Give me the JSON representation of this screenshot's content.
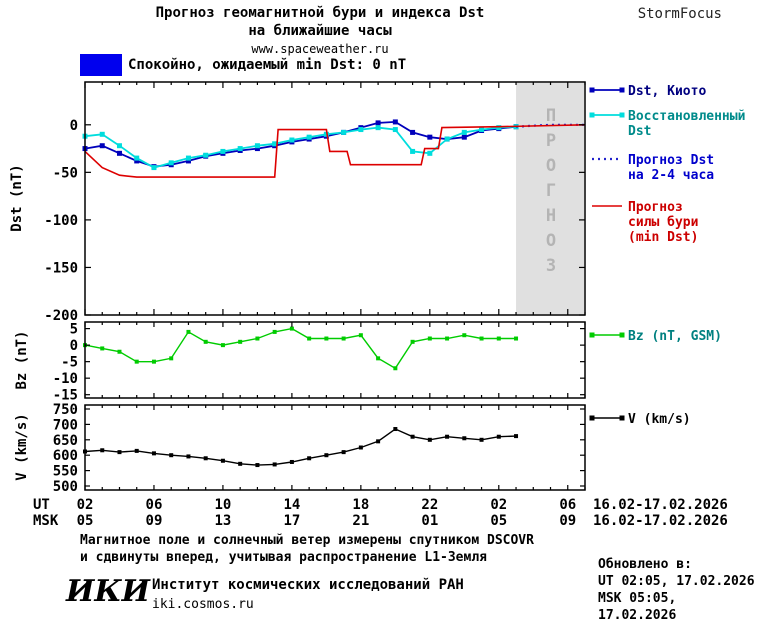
{
  "header": {
    "title_line1": "Прогноз геомагнитной бури и индекса Dst",
    "title_line2": "на ближайшие часы",
    "site": "www.spaceweather.ru",
    "brand": "StormFocus"
  },
  "status": {
    "label": "Спокойно, ожидаемый min Dst: 0 nT"
  },
  "style": {
    "band_color": "#e0e0e0",
    "band_text_color": "#b4b4b4",
    "status_box_color": "#0000ee",
    "axis_color": "#000000"
  },
  "chart_data": [
    {
      "type": "line",
      "id": "dst",
      "ylabel": "Dst (nT)",
      "xlim": [
        2,
        31
      ],
      "ylim": [
        -200,
        45
      ],
      "yticks": [
        0,
        -50,
        -100,
        -150,
        -200
      ],
      "xticks": [
        2,
        6,
        10,
        14,
        18,
        22,
        26,
        30
      ],
      "forecast_band": [
        27,
        31
      ],
      "forecast_band_label": "ПРОГНОЗ",
      "series": [
        {
          "id": "dst-kyoto",
          "color": "#0000bb",
          "marker": "square",
          "marker_size": 5,
          "width": 1.8,
          "x": [
            2,
            3,
            4,
            5,
            6,
            7,
            8,
            9,
            10,
            11,
            12,
            13,
            14,
            15,
            16,
            17,
            18,
            19,
            20,
            21,
            22,
            23,
            24,
            25,
            26,
            27
          ],
          "values": [
            -25,
            -22,
            -30,
            -38,
            -44,
            -42,
            -38,
            -33,
            -30,
            -27,
            -25,
            -22,
            -18,
            -15,
            -12,
            -8,
            -3,
            2,
            3,
            -8,
            -13,
            -15,
            -13,
            -6,
            -4,
            -2
          ],
          "legend": {
            "lines": [
              "Dst, Киото"
            ],
            "text_color": "#000080"
          }
        },
        {
          "id": "dst-restored",
          "color": "#00dddd",
          "marker": "square",
          "marker_size": 5,
          "width": 1.8,
          "x": [
            2,
            3,
            4,
            5,
            6,
            7,
            8,
            9,
            10,
            11,
            12,
            13,
            14,
            15,
            16,
            17,
            18,
            19,
            20,
            21,
            22,
            23,
            24,
            25,
            26,
            27
          ],
          "values": [
            -12,
            -10,
            -22,
            -35,
            -45,
            -40,
            -35,
            -32,
            -28,
            -25,
            -22,
            -20,
            -16,
            -13,
            -10,
            -8,
            -5,
            -3,
            -5,
            -28,
            -30,
            -15,
            -8,
            -5,
            -3,
            -2
          ],
          "legend": {
            "lines": [
              "Восстановленный",
              "Dst"
            ],
            "text_color": "#008b8b"
          }
        },
        {
          "id": "dst-forecast",
          "color": "#2222cc",
          "style": "dotted",
          "width": 2.2,
          "x": [
            27,
            28,
            29,
            30,
            31
          ],
          "values": [
            -2,
            -1,
            0,
            0,
            0
          ],
          "legend": {
            "lines": [
              "Прогноз Dst",
              "на 2-4 часа"
            ],
            "text_color": "#0000cc"
          }
        },
        {
          "id": "storm-forecast",
          "color": "#dd0000",
          "width": 1.6,
          "x": [
            2,
            3,
            4,
            5,
            13,
            13.2,
            16,
            16.2,
            17.2,
            17.4,
            21.5,
            21.7,
            22.5,
            22.7,
            26,
            31
          ],
          "values": [
            -28,
            -45,
            -53,
            -55,
            -55,
            -5,
            -5,
            -28,
            -28,
            -42,
            -42,
            -25,
            -25,
            -3,
            -2,
            0
          ],
          "legend": {
            "lines": [
              "Прогноз",
              "силы бури",
              "(min Dst)"
            ],
            "text_color": "#cc0000"
          }
        }
      ]
    },
    {
      "type": "line",
      "id": "bz",
      "ylabel": "Bz (nT)",
      "xlim": [
        2,
        31
      ],
      "ylim": [
        -16,
        7
      ],
      "yticks": [
        5,
        0,
        -5,
        -10,
        -15
      ],
      "xticks": [
        2,
        6,
        10,
        14,
        18,
        22,
        26,
        30
      ],
      "series": [
        {
          "id": "bz-gsm",
          "color": "#00cc00",
          "marker": "square",
          "marker_size": 4,
          "width": 1.4,
          "x": [
            2,
            3,
            4,
            5,
            6,
            7,
            8,
            9,
            10,
            11,
            12,
            13,
            14,
            15,
            16,
            17,
            18,
            19,
            20,
            21,
            22,
            23,
            24,
            25,
            26,
            27
          ],
          "values": [
            0,
            -1,
            -2,
            -5,
            -5,
            -4,
            4,
            1,
            0,
            1,
            2,
            4,
            5,
            2,
            2,
            2,
            3,
            -4,
            -7,
            1,
            2,
            2,
            3,
            2,
            2,
            2
          ],
          "legend": {
            "lines": [
              "Bz (nT, GSM)"
            ],
            "text_color": "#008080"
          }
        }
      ]
    },
    {
      "type": "line",
      "id": "v",
      "ylabel": "V (km/s)",
      "xlim": [
        2,
        31
      ],
      "ylim": [
        487,
        763
      ],
      "yticks": [
        750,
        700,
        650,
        600,
        550,
        500
      ],
      "xticks": [
        2,
        6,
        10,
        14,
        18,
        22,
        26,
        30
      ],
      "series": [
        {
          "id": "solar-wind-v",
          "color": "#000000",
          "marker": "square",
          "marker_size": 4,
          "width": 1.4,
          "x": [
            2,
            3,
            4,
            5,
            6,
            7,
            8,
            9,
            10,
            11,
            12,
            13,
            14,
            15,
            16,
            17,
            18,
            19,
            20,
            21,
            22,
            23,
            24,
            25,
            26,
            27
          ],
          "values": [
            612,
            616,
            610,
            614,
            606,
            600,
            596,
            590,
            582,
            572,
            568,
            570,
            578,
            590,
            600,
            610,
            625,
            645,
            685,
            660,
            650,
            660,
            655,
            650,
            660,
            662
          ],
          "legend": {
            "lines": [
              "V (km/s)"
            ],
            "text_color": "#000000"
          }
        }
      ]
    }
  ],
  "xaxis": {
    "ut_label": "UT",
    "msk_label": "MSK",
    "ut_ticks": [
      "02",
      "06",
      "10",
      "14",
      "18",
      "22",
      "02",
      "06"
    ],
    "msk_ticks": [
      "05",
      "09",
      "13",
      "17",
      "21",
      "01",
      "05",
      "09"
    ],
    "date_range": "16.02-17.02.2026"
  },
  "footer": {
    "note_line1": "Магнитное поле и солнечный ветер измерены спутником DSCOVR",
    "note_line2": "и сдвинуты вперед, учитывая распространение L1-Земля",
    "updated_label": "Обновлено в:",
    "updated_ut": "UT  02:05, 17.02.2026",
    "updated_msk": "MSK 05:05, 17.02.2026",
    "logo": "ИКИ",
    "institute": "Институт космических исследований РАН",
    "institute_site": "iki.cosmos.ru"
  }
}
